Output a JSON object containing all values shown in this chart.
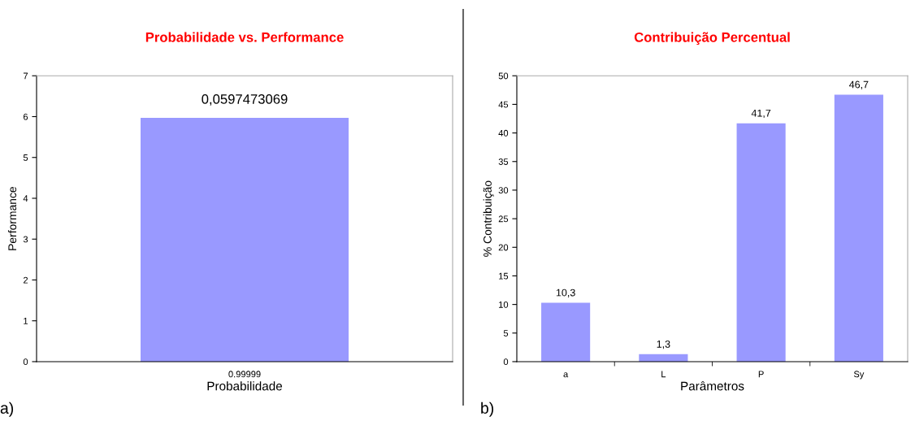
{
  "chart_data": [
    {
      "type": "bar",
      "title": "Probabilidade vs. Performance",
      "xlabel": "Probabilidade",
      "ylabel": "Performance",
      "categories": [
        "0.99999"
      ],
      "values": [
        5.97
      ],
      "color": "#9999ff",
      "ylim": [
        0,
        7
      ],
      "yticks": [
        0,
        1,
        2,
        3,
        4,
        5,
        6,
        7
      ],
      "grid": false,
      "annotations": [
        {
          "text": "0,0597473069",
          "x": "0.99999",
          "y": 5.97
        },
        "a)"
      ]
    },
    {
      "type": "bar",
      "title": "Contribuição Percentual",
      "xlabel": "Parâmetros",
      "ylabel": "% Contribuição",
      "categories": [
        "a",
        "L",
        "P",
        "Sy"
      ],
      "values": [
        10.3,
        1.3,
        41.7,
        46.7
      ],
      "value_labels": [
        "10,3",
        "1,3",
        "41,7",
        "46,7"
      ],
      "color": "#9999ff",
      "ylim": [
        0,
        50
      ],
      "yticks": [
        0,
        5,
        10,
        15,
        20,
        25,
        30,
        35,
        40,
        45,
        50
      ],
      "grid": false,
      "annotations": [
        "b)"
      ]
    }
  ]
}
